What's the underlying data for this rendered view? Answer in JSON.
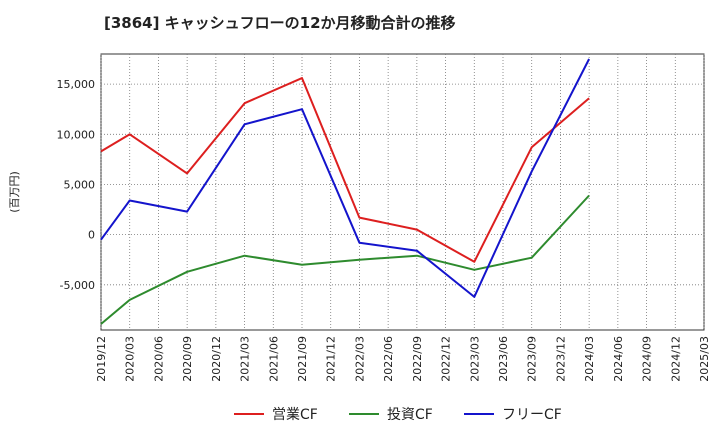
{
  "chart_data": {
    "type": "line",
    "title": "[3864]  キャッシュフローの12か月移動合計の推移",
    "ylabel": "(百万円)",
    "xlabel": "",
    "ylim": [
      -9500,
      18000
    ],
    "yticks": [
      -5000,
      0,
      5000,
      10000,
      15000
    ],
    "ytick_labels": [
      "-5,000",
      "0",
      "5,000",
      "10,000",
      "15,000"
    ],
    "x_ticks": [
      "2019/12",
      "2020/03",
      "2020/06",
      "2020/09",
      "2020/12",
      "2021/03",
      "2021/06",
      "2021/09",
      "2021/12",
      "2022/03",
      "2022/06",
      "2022/09",
      "2022/12",
      "2023/03",
      "2023/06",
      "2023/09",
      "2023/12",
      "2024/03",
      "2024/06",
      "2024/09",
      "2024/12",
      "2025/03"
    ],
    "grid": true,
    "legend_position": "bottom",
    "series": [
      {
        "name": "営業CF",
        "color": "#dd1f1f",
        "points": [
          {
            "x": "2019/12",
            "y": 8300
          },
          {
            "x": "2020/03",
            "y": 10000
          },
          {
            "x": "2020/09",
            "y": 6100
          },
          {
            "x": "2021/03",
            "y": 13100
          },
          {
            "x": "2021/09",
            "y": 15600
          },
          {
            "x": "2022/03",
            "y": 1700
          },
          {
            "x": "2022/09",
            "y": 500
          },
          {
            "x": "2023/03",
            "y": -2700
          },
          {
            "x": "2023/09",
            "y": 8700
          },
          {
            "x": "2024/03",
            "y": 13600
          }
        ]
      },
      {
        "name": "投資CF",
        "color": "#2e8b2e",
        "points": [
          {
            "x": "2019/12",
            "y": -8900
          },
          {
            "x": "2020/03",
            "y": -6500
          },
          {
            "x": "2020/09",
            "y": -3700
          },
          {
            "x": "2021/03",
            "y": -2100
          },
          {
            "x": "2021/09",
            "y": -3000
          },
          {
            "x": "2022/03",
            "y": -2500
          },
          {
            "x": "2022/09",
            "y": -2100
          },
          {
            "x": "2023/03",
            "y": -3500
          },
          {
            "x": "2023/09",
            "y": -2300
          },
          {
            "x": "2024/03",
            "y": 3900
          }
        ]
      },
      {
        "name": "フリーCF",
        "color": "#1414cc",
        "points": [
          {
            "x": "2019/12",
            "y": -500
          },
          {
            "x": "2020/03",
            "y": 3400
          },
          {
            "x": "2020/09",
            "y": 2300
          },
          {
            "x": "2021/03",
            "y": 11000
          },
          {
            "x": "2021/09",
            "y": 12500
          },
          {
            "x": "2022/03",
            "y": -800
          },
          {
            "x": "2022/09",
            "y": -1600
          },
          {
            "x": "2023/03",
            "y": -6200
          },
          {
            "x": "2023/09",
            "y": 6300
          },
          {
            "x": "2024/03",
            "y": 17500
          }
        ]
      }
    ]
  }
}
